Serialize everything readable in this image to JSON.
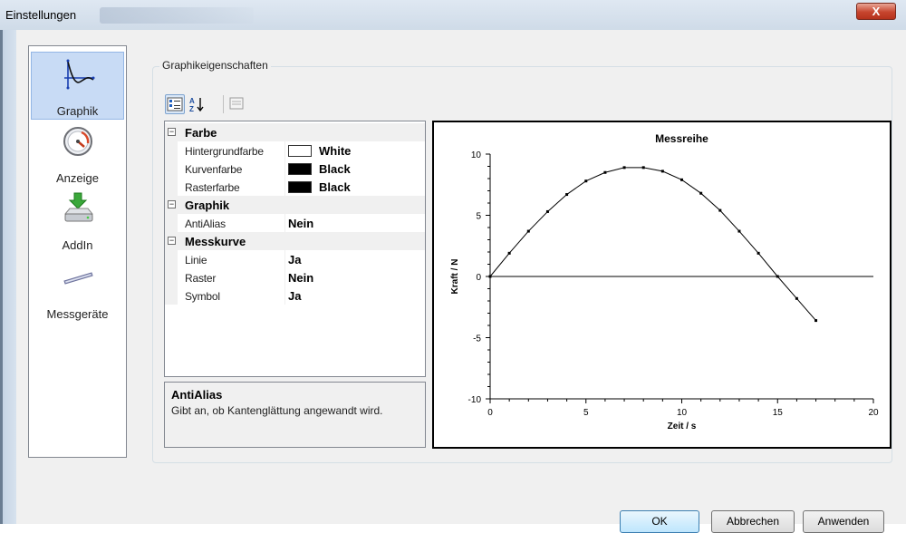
{
  "window": {
    "title": "Einstellungen",
    "close_label": "X"
  },
  "nav": {
    "items": [
      {
        "label": "Graphik",
        "icon": "curve-graph-icon",
        "selected": true
      },
      {
        "label": "Anzeige",
        "icon": "gauge-icon",
        "selected": false
      },
      {
        "label": "AddIn",
        "icon": "drive-download-icon",
        "selected": false
      },
      {
        "label": "Messgeräte",
        "icon": "probe-icon",
        "selected": false
      }
    ]
  },
  "group": {
    "title": "Graphikeigenschaften"
  },
  "toolbar": {
    "buttons": [
      "categorized-icon",
      "alphabetical-icon",
      "property-pages-icon"
    ],
    "alpha_label": "A↓"
  },
  "properties": {
    "categories": [
      {
        "name": "Farbe",
        "rows": [
          {
            "name": "Hintergrundfarbe",
            "value": "White",
            "swatch": "#ffffff"
          },
          {
            "name": "Kurvenfarbe",
            "value": "Black",
            "swatch": "#000000"
          },
          {
            "name": "Rasterfarbe",
            "value": "Black",
            "swatch": "#000000"
          }
        ]
      },
      {
        "name": "Graphik",
        "rows": [
          {
            "name": "AntiAlias",
            "value": "Nein"
          }
        ]
      },
      {
        "name": "Messkurve",
        "rows": [
          {
            "name": "Linie",
            "value": "Ja"
          },
          {
            "name": "Raster",
            "value": "Nein"
          },
          {
            "name": "Symbol",
            "value": "Ja"
          }
        ]
      }
    ],
    "expander_symbol": "−"
  },
  "help": {
    "title": "AntiAlias",
    "description": "Gibt an, ob Kantenglättung angewandt wird."
  },
  "chart_data": {
    "type": "line",
    "title": "Messreihe",
    "xlabel": "Zeit / s",
    "ylabel": "Kraft / N",
    "xlim": [
      0,
      20
    ],
    "ylim": [
      -10,
      10
    ],
    "xticks": [
      0,
      5,
      10,
      15,
      20
    ],
    "yticks": [
      -10,
      -5,
      0,
      5,
      10
    ],
    "grid": false,
    "series": [
      {
        "x": [
          0,
          1,
          2,
          3,
          4,
          5,
          6,
          7,
          8,
          9,
          10,
          11,
          12,
          13,
          14,
          15,
          16,
          17
        ],
        "y": [
          0,
          1.9,
          3.7,
          5.3,
          6.7,
          7.8,
          8.5,
          8.9,
          8.9,
          8.6,
          7.9,
          6.8,
          5.4,
          3.7,
          1.9,
          0,
          -1.8,
          -3.6
        ]
      }
    ]
  },
  "buttons": {
    "ok": "OK",
    "cancel": "Abbrechen",
    "apply": "Anwenden"
  }
}
